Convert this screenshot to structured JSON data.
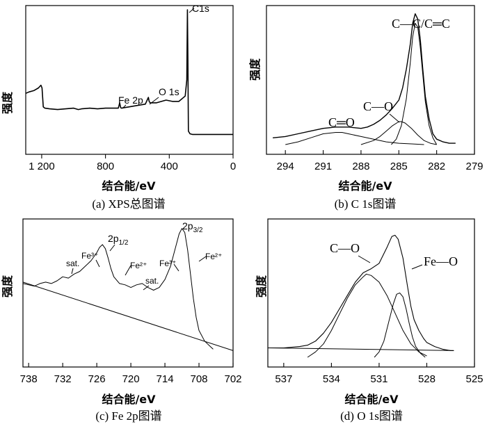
{
  "chart_data": [
    {
      "type": "line",
      "panel": "a",
      "caption": "(a) XPS总图谱",
      "xlabel": "结合能/eV",
      "ylabel": "强度",
      "xlim": [
        1300,
        0
      ],
      "xticks": [
        "1 200",
        "800",
        "400",
        "0"
      ],
      "xtick_values": [
        1200,
        800,
        400,
        0
      ],
      "x_reversed": true,
      "y_ticks_shown": false,
      "annotations": [
        {
          "text": "C1s",
          "x": 285
        },
        {
          "text": "Fe 2p",
          "x": 711
        },
        {
          "text": "O 1s",
          "x": 530
        }
      ],
      "series": [
        {
          "x": [
            1300,
            1280,
            1250,
            1220,
            1205,
            1198,
            1190,
            1180,
            1150,
            1100,
            1050,
            1000,
            970,
            950,
            900,
            850,
            800,
            760,
            720,
            715,
            711,
            705,
            700,
            650,
            600,
            550,
            535,
            531,
            526,
            520,
            480,
            420,
            380,
            340,
            300,
            290,
            286,
            283,
            280,
            270,
            255,
            220,
            150,
            80,
            0
          ],
          "y": [
            0.38,
            0.39,
            0.4,
            0.42,
            0.44,
            0.42,
            0.28,
            0.27,
            0.265,
            0.26,
            0.265,
            0.27,
            0.26,
            0.265,
            0.27,
            0.265,
            0.27,
            0.27,
            0.27,
            0.29,
            0.31,
            0.275,
            0.27,
            0.28,
            0.29,
            0.3,
            0.34,
            0.35,
            0.32,
            0.31,
            0.31,
            0.33,
            0.32,
            0.32,
            0.36,
            0.48,
            1.0,
            0.62,
            0.1,
            0.08,
            0.075,
            0.075,
            0.075,
            0.075,
            0.075
          ]
        }
      ]
    },
    {
      "type": "line",
      "panel": "b",
      "caption": "(b) C 1s图谱",
      "xlabel": "结合能/eV",
      "ylabel": "强度",
      "xlim": [
        295.5,
        279
      ],
      "xticks": [
        "294",
        "291",
        "288",
        "285",
        "282",
        "279"
      ],
      "xtick_values": [
        294,
        291,
        288,
        285,
        282,
        279
      ],
      "x_reversed": true,
      "y_ticks_shown": false,
      "annotations": [
        {
          "text": "C—C/C═C",
          "x": 283.8
        },
        {
          "text": "C—O",
          "x": 285.8
        },
        {
          "text": "C═O",
          "x": 289.5
        }
      ],
      "series": [
        {
          "name": "",
          "x": [
            295,
            294,
            293,
            292,
            291,
            290,
            289,
            288,
            287.5,
            287,
            286.5,
            286,
            285.5,
            285,
            284.7,
            284.4,
            284.1,
            283.9,
            283.7,
            283.5,
            283.3,
            283.1,
            282.9,
            282.6,
            282.3,
            282,
            281.5,
            281,
            280.5
          ],
          "y": [
            0.05,
            0.06,
            0.08,
            0.1,
            0.12,
            0.13,
            0.13,
            0.12,
            0.13,
            0.15,
            0.18,
            0.22,
            0.27,
            0.33,
            0.42,
            0.56,
            0.74,
            0.9,
            0.97,
            0.93,
            0.78,
            0.56,
            0.36,
            0.19,
            0.08,
            0.04,
            0.02,
            0.01,
            0.01
          ]
        },
        {
          "name": "",
          "x": [
            294,
            293,
            292,
            291,
            290,
            289.5,
            289,
            288,
            287,
            286,
            285,
            284,
            283
          ],
          "y": [
            0.0,
            0.02,
            0.05,
            0.08,
            0.09,
            0.09,
            0.08,
            0.06,
            0.04,
            0.02,
            0.01,
            0.005,
            0.0
          ]
        },
        {
          "name": "",
          "x": [
            288,
            287,
            286.5,
            286,
            285.5,
            285,
            284.8,
            284.5,
            284,
            283.5,
            283,
            282.5,
            282
          ],
          "y": [
            0.0,
            0.03,
            0.06,
            0.1,
            0.14,
            0.17,
            0.17,
            0.16,
            0.12,
            0.07,
            0.03,
            0.01,
            0.0
          ]
        },
        {
          "name": "",
          "x": [
            285.6,
            285.2,
            284.8,
            284.4,
            284.1,
            283.9,
            283.7,
            283.5,
            283.3,
            283.1,
            282.9,
            282.6,
            282.3,
            282
          ],
          "y": [
            0.0,
            0.04,
            0.14,
            0.34,
            0.6,
            0.8,
            0.9,
            0.87,
            0.72,
            0.52,
            0.32,
            0.14,
            0.05,
            0.0
          ]
        }
      ]
    },
    {
      "type": "line",
      "panel": "c",
      "caption": "(c) Fe 2p图谱",
      "xlabel": "结合能/eV",
      "ylabel": "强度",
      "xlim": [
        739,
        702
      ],
      "xticks": [
        "738",
        "732",
        "726",
        "720",
        "714",
        "708",
        "702"
      ],
      "xtick_values": [
        738,
        732,
        726,
        720,
        714,
        708,
        702
      ],
      "x_reversed": true,
      "y_ticks_shown": false,
      "annotations": [
        {
          "text": "sat.",
          "x": 732
        },
        {
          "text": "Fe³⁺",
          "x": 727
        },
        {
          "text": "2p",
          "sub": "1/2",
          "x": 724.5
        },
        {
          "text": "Fe²⁺",
          "x": 722
        },
        {
          "text": "sat.",
          "x": 718.5
        },
        {
          "text": "Fe³⁺",
          "x": 713
        },
        {
          "text": "2p",
          "sub": "3/2",
          "x": 711
        },
        {
          "text": "Fe²⁺",
          "x": 709
        }
      ],
      "series": [
        {
          "name": "",
          "x": [
            739,
            738,
            737,
            736,
            735,
            734,
            733,
            732,
            731,
            730,
            729,
            728,
            727,
            726,
            725.5,
            725,
            724.5,
            724,
            723.5,
            723,
            722,
            721,
            720,
            719,
            718,
            717,
            716,
            715,
            714,
            713,
            712.5,
            712,
            711.5,
            711,
            710.5,
            710,
            709.5,
            709,
            708.5,
            708,
            707,
            706,
            705.5
          ],
          "y": [
            0.55,
            0.54,
            0.53,
            0.55,
            0.56,
            0.55,
            0.57,
            0.6,
            0.59,
            0.62,
            0.64,
            0.68,
            0.72,
            0.78,
            0.82,
            0.84,
            0.81,
            0.74,
            0.66,
            0.6,
            0.55,
            0.54,
            0.52,
            0.54,
            0.55,
            0.52,
            0.5,
            0.52,
            0.58,
            0.68,
            0.76,
            0.84,
            0.92,
            0.96,
            0.93,
            0.8,
            0.62,
            0.44,
            0.3,
            0.2,
            0.12,
            0.08,
            0.06
          ]
        },
        {
          "name": "",
          "x": [
            739,
            702
          ],
          "y": [
            0.56,
            0.05
          ]
        }
      ]
    },
    {
      "type": "line",
      "panel": "d",
      "caption": "(d) O 1s图谱",
      "xlabel": "结合能/eV",
      "ylabel": "强度",
      "xlim": [
        538,
        525
      ],
      "xticks": [
        "537",
        "534",
        "531",
        "528",
        "525"
      ],
      "xtick_values": [
        537,
        534,
        531,
        528,
        525
      ],
      "x_reversed": true,
      "y_ticks_shown": false,
      "annotations": [
        {
          "text": "C—O",
          "x": 532.1
        },
        {
          "text": "Fe—O",
          "x": 529.5
        }
      ],
      "series": [
        {
          "name": "",
          "x": [
            538,
            537,
            536,
            535.5,
            535,
            534.5,
            534,
            533.5,
            533,
            532.5,
            532,
            531.5,
            531,
            530.5,
            530.2,
            530,
            529.8,
            529.5,
            529.2,
            529,
            528.8,
            528.5,
            528.2,
            528,
            527.5,
            527,
            526.5,
            526.3
          ],
          "y": [
            0.07,
            0.07,
            0.08,
            0.09,
            0.12,
            0.18,
            0.26,
            0.36,
            0.46,
            0.56,
            0.63,
            0.66,
            0.7,
            0.82,
            0.9,
            0.91,
            0.88,
            0.74,
            0.52,
            0.38,
            0.28,
            0.2,
            0.14,
            0.11,
            0.08,
            0.06,
            0.05,
            0.05
          ]
        },
        {
          "name": "",
          "x": [
            535.5,
            535,
            534.5,
            534,
            533.5,
            533,
            532.5,
            532,
            531.8,
            531.5,
            531,
            530.5,
            530,
            529.5,
            529,
            528.5,
            528
          ],
          "y": [
            0.0,
            0.04,
            0.1,
            0.2,
            0.32,
            0.44,
            0.54,
            0.6,
            0.62,
            0.61,
            0.56,
            0.46,
            0.33,
            0.2,
            0.1,
            0.04,
            0.01
          ]
        },
        {
          "name": "",
          "x": [
            531.3,
            531,
            530.7,
            530.4,
            530.1,
            529.9,
            529.7,
            529.5,
            529.3,
            529.1,
            528.9,
            528.7,
            528.4,
            528.1
          ],
          "y": [
            0.0,
            0.04,
            0.12,
            0.26,
            0.4,
            0.47,
            0.48,
            0.45,
            0.36,
            0.25,
            0.15,
            0.08,
            0.03,
            0.0
          ]
        },
        {
          "name": "",
          "x": [
            538,
            526.3
          ],
          "y": [
            0.07,
            0.05
          ]
        }
      ]
    }
  ]
}
